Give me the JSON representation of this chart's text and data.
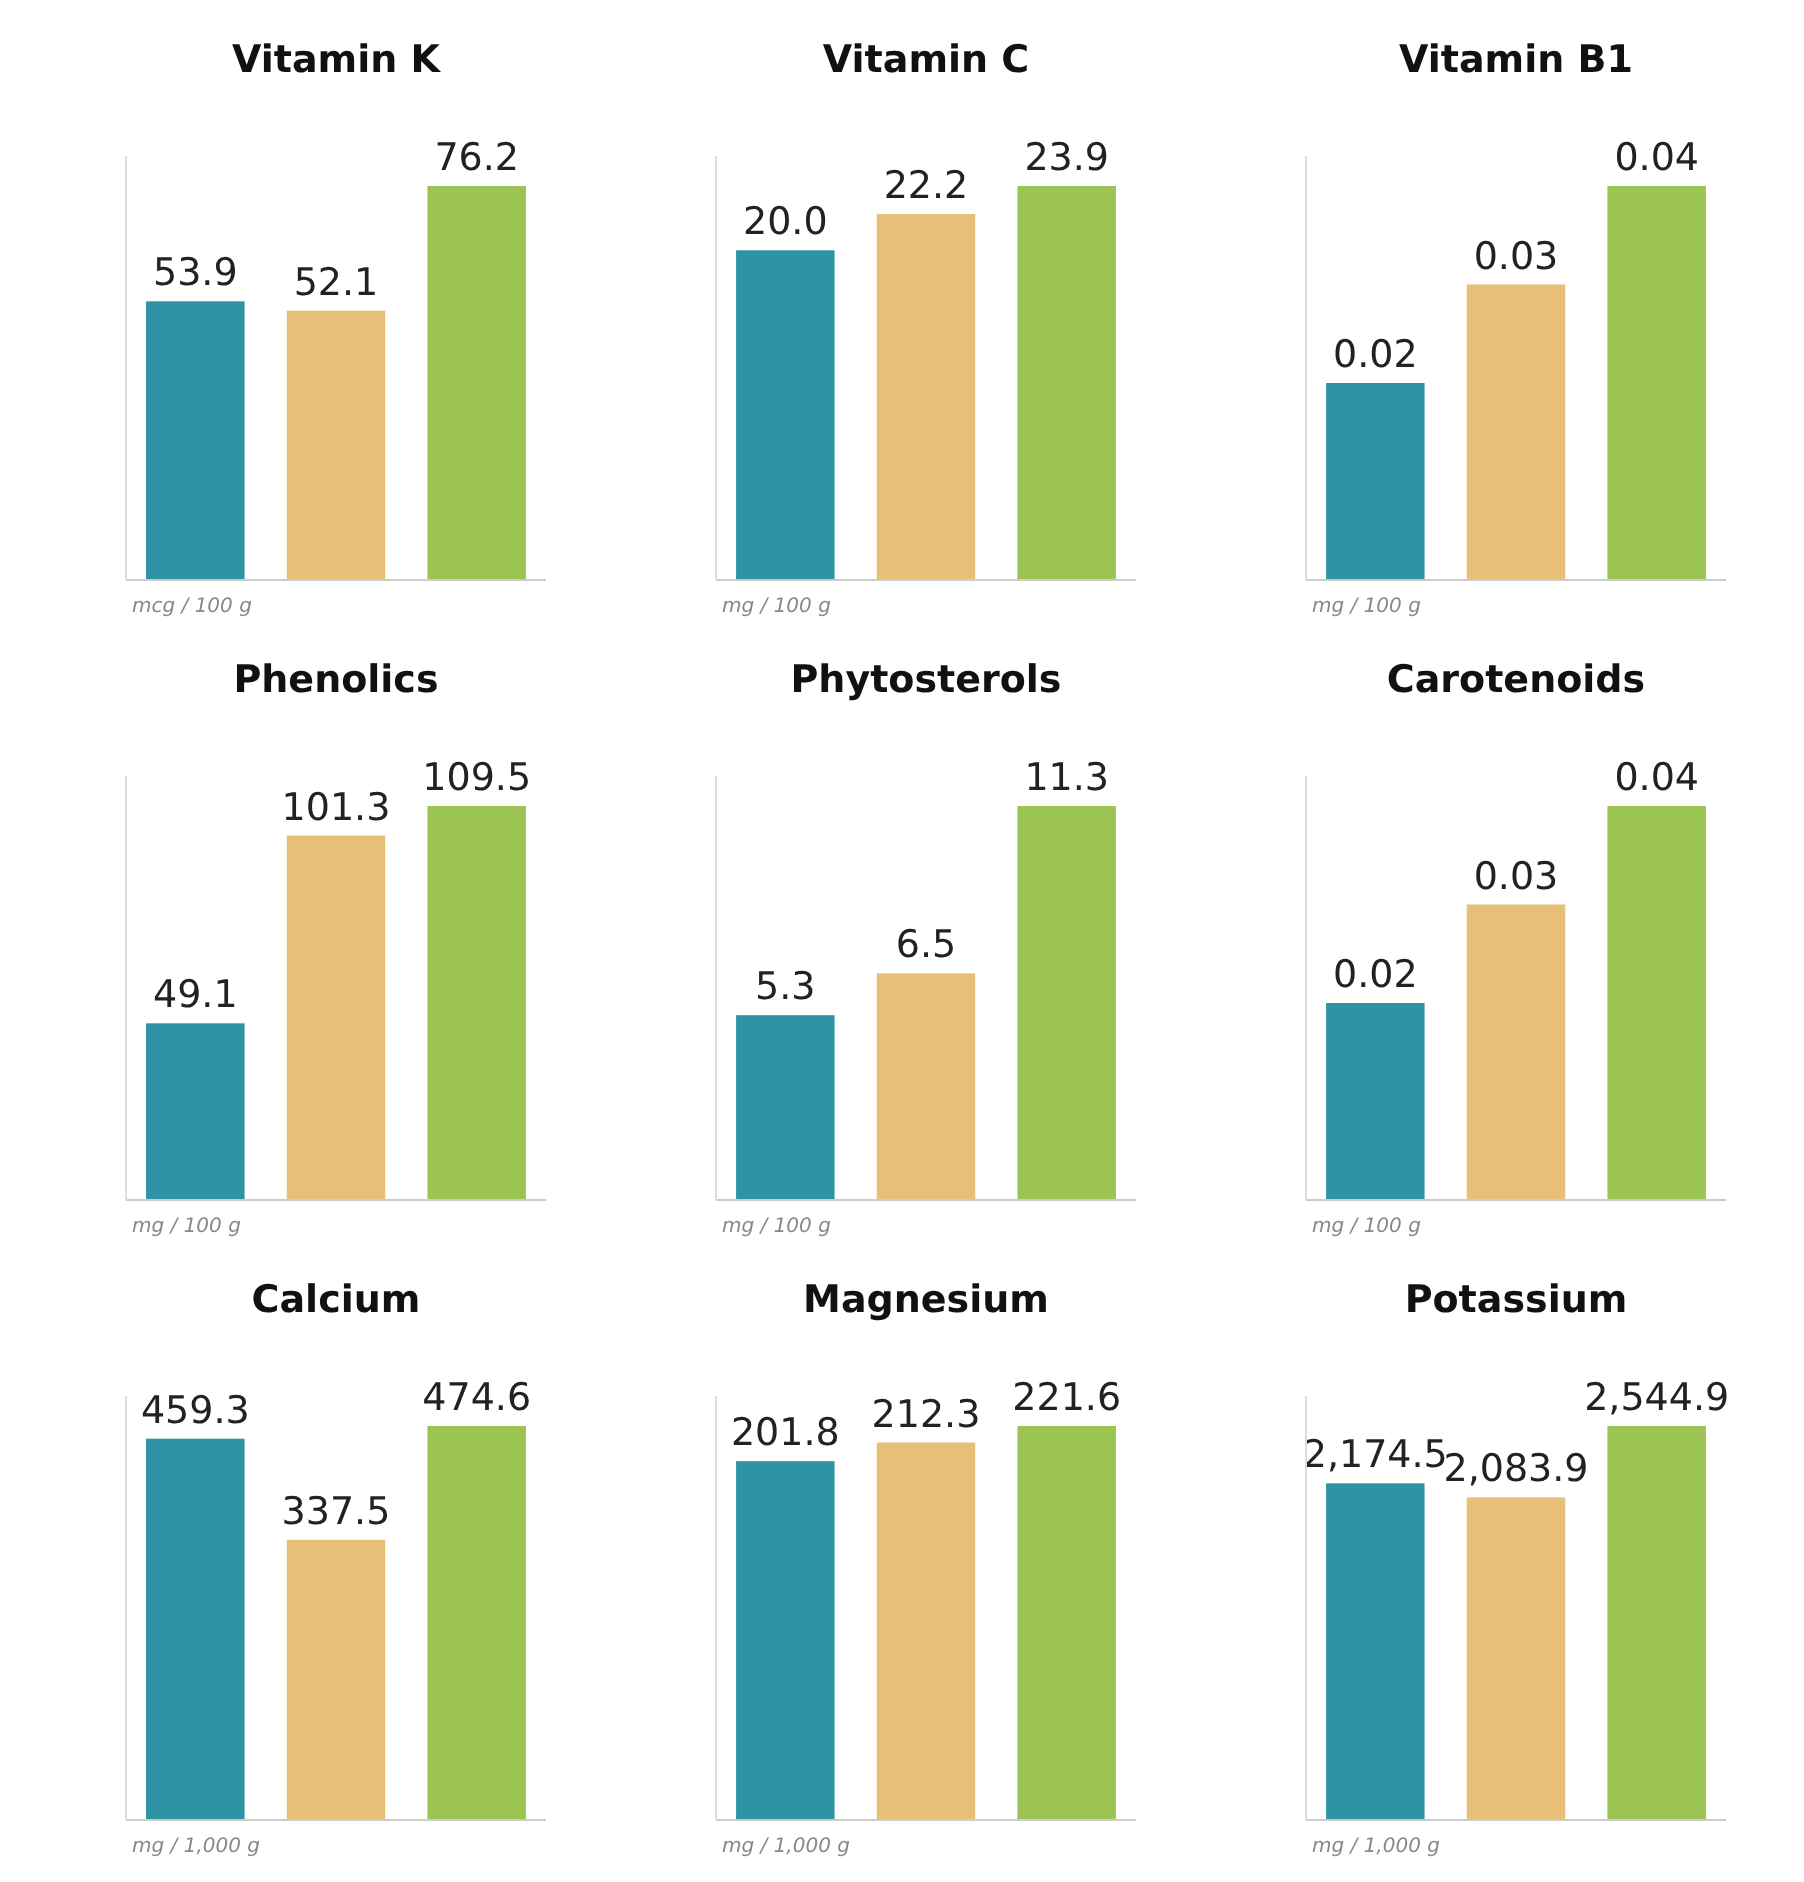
{
  "chart_data": [
    {
      "type": "bar",
      "title": "Vitamin K",
      "categories": [
        null,
        null,
        null
      ],
      "values": [
        53.9,
        52.1,
        76.2
      ],
      "value_labels": [
        "53.9",
        "52.1",
        "76.2"
      ],
      "colors": [
        "#2e93a5",
        "#e7bf78",
        "#9cc452"
      ],
      "annotations": [
        "mcg / 100 g"
      ]
    },
    {
      "type": "bar",
      "title": "Vitamin C",
      "categories": [
        null,
        null,
        null
      ],
      "values": [
        20.0,
        22.2,
        23.9
      ],
      "value_labels": [
        "20.0",
        "22.2",
        "23.9"
      ],
      "colors": [
        "#2e93a5",
        "#e7bf78",
        "#9cc452"
      ],
      "annotations": [
        "mg / 100 g"
      ]
    },
    {
      "type": "bar",
      "title": "Vitamin B1",
      "categories": [
        null,
        null,
        null
      ],
      "values": [
        0.02,
        0.03,
        0.04
      ],
      "value_labels": [
        "0.02",
        "0.03",
        "0.04"
      ],
      "colors": [
        "#2e93a5",
        "#e7bf78",
        "#9cc452"
      ],
      "annotations": [
        "mg / 100 g"
      ]
    },
    {
      "type": "bar",
      "title": "Phenolics",
      "categories": [
        null,
        null,
        null
      ],
      "values": [
        49.1,
        101.3,
        109.5
      ],
      "value_labels": [
        "49.1",
        "101.3",
        "109.5"
      ],
      "colors": [
        "#2e93a5",
        "#e7bf78",
        "#9cc452"
      ],
      "annotations": [
        "mg / 100 g"
      ]
    },
    {
      "type": "bar",
      "title": "Phytosterols",
      "categories": [
        null,
        null,
        null
      ],
      "values": [
        5.3,
        6.5,
        11.3
      ],
      "value_labels": [
        "5.3",
        "6.5",
        "11.3"
      ],
      "colors": [
        "#2e93a5",
        "#e7bf78",
        "#9cc452"
      ],
      "annotations": [
        "mg / 100 g"
      ]
    },
    {
      "type": "bar",
      "title": "Carotenoids",
      "categories": [
        null,
        null,
        null
      ],
      "values": [
        0.02,
        0.03,
        0.04
      ],
      "value_labels": [
        "0.02",
        "0.03",
        "0.04"
      ],
      "colors": [
        "#2e93a5",
        "#e7bf78",
        "#9cc452"
      ],
      "annotations": [
        "mg / 100 g"
      ]
    },
    {
      "type": "bar",
      "title": "Calcium",
      "categories": [
        null,
        null,
        null
      ],
      "values": [
        459.3,
        337.5,
        474.6
      ],
      "value_labels": [
        "459.3",
        "337.5",
        "474.6"
      ],
      "colors": [
        "#2e93a5",
        "#e7bf78",
        "#9cc452"
      ],
      "annotations": [
        "mg / 1,000 g"
      ]
    },
    {
      "type": "bar",
      "title": "Magnesium",
      "categories": [
        null,
        null,
        null
      ],
      "values": [
        201.8,
        212.3,
        221.6
      ],
      "value_labels": [
        "201.8",
        "212.3",
        "221.6"
      ],
      "colors": [
        "#2e93a5",
        "#e7bf78",
        "#9cc452"
      ],
      "annotations": [
        "mg / 1,000 g"
      ]
    },
    {
      "type": "bar",
      "title": "Potassium",
      "categories": [
        null,
        null,
        null
      ],
      "values": [
        2174.5,
        2083.9,
        2544.9
      ],
      "value_labels": [
        "2,174.5",
        "2,083.9",
        "2,544.9"
      ],
      "colors": [
        "#2e93a5",
        "#e7bf78",
        "#9cc452"
      ],
      "annotations": [
        "mg / 1,000 g"
      ]
    }
  ]
}
